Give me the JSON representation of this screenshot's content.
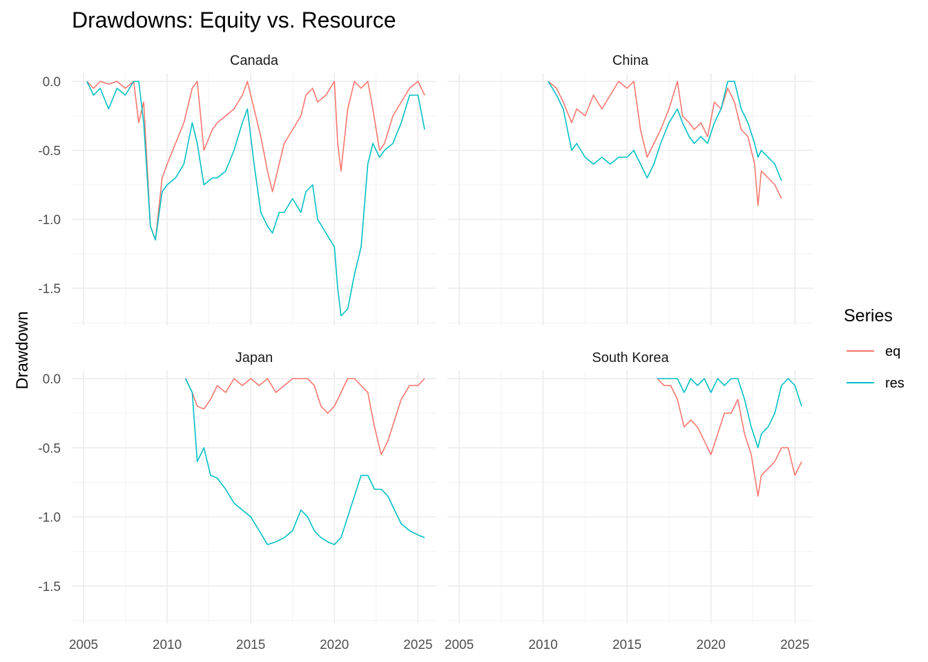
{
  "chart_data": {
    "type": "line",
    "title": "Drawdowns: Equity vs. Resource",
    "xlabel": "",
    "ylabel": "Drawdown",
    "xlim": [
      2004.3,
      2026.1
    ],
    "ylim": [
      -1.77,
      0.06
    ],
    "x_ticks": [
      "2005",
      "2010",
      "2015",
      "2020",
      "2025"
    ],
    "y_ticks": [
      "0.0",
      "-0.5",
      "-1.0",
      "-1.5"
    ],
    "grid": true,
    "legend": {
      "title": "Series",
      "position": "right",
      "entries": [
        {
          "name": "eq",
          "color": "#F8766D"
        },
        {
          "name": "res",
          "color": "#00BFC4"
        }
      ]
    },
    "panels": [
      {
        "name": "Canada",
        "series": [
          {
            "name": "eq",
            "color": "#F8766D",
            "x": [
              2005.2,
              2005.6,
              2006.0,
              2006.5,
              2007.0,
              2007.5,
              2008.0,
              2008.3,
              2008.6,
              2009.0,
              2009.3,
              2009.7,
              2010.0,
              2010.5,
              2011.0,
              2011.5,
              2011.8,
              2012.2,
              2012.7,
              2013.0,
              2013.5,
              2014.0,
              2014.5,
              2014.8,
              2015.2,
              2015.6,
              2016.0,
              2016.3,
              2016.7,
              2017.0,
              2017.5,
              2018.0,
              2018.3,
              2018.7,
              2019.0,
              2019.5,
              2020.0,
              2020.2,
              2020.4,
              2020.8,
              2021.2,
              2021.6,
              2022.0,
              2022.3,
              2022.7,
              2023.0,
              2023.5,
              2024.0,
              2024.5,
              2025.0,
              2025.4
            ],
            "y": [
              0.0,
              -0.05,
              0.0,
              -0.02,
              0.0,
              -0.05,
              0.0,
              -0.3,
              -0.15,
              -1.05,
              -1.15,
              -0.7,
              -0.6,
              -0.45,
              -0.3,
              -0.05,
              0.0,
              -0.5,
              -0.35,
              -0.3,
              -0.25,
              -0.2,
              -0.1,
              0.0,
              -0.2,
              -0.4,
              -0.65,
              -0.8,
              -0.6,
              -0.45,
              -0.35,
              -0.25,
              -0.1,
              -0.05,
              -0.15,
              -0.1,
              0.0,
              -0.45,
              -0.65,
              -0.2,
              0.0,
              -0.05,
              0.0,
              -0.2,
              -0.5,
              -0.45,
              -0.25,
              -0.15,
              -0.05,
              0.0,
              -0.1
            ]
          },
          {
            "name": "res",
            "color": "#00BFC4",
            "x": [
              2005.2,
              2005.6,
              2006.0,
              2006.5,
              2007.0,
              2007.5,
              2008.0,
              2008.3,
              2008.6,
              2009.0,
              2009.3,
              2009.7,
              2010.0,
              2010.5,
              2011.0,
              2011.5,
              2011.8,
              2012.2,
              2012.7,
              2013.0,
              2013.5,
              2014.0,
              2014.5,
              2014.8,
              2015.2,
              2015.6,
              2016.0,
              2016.3,
              2016.7,
              2017.0,
              2017.5,
              2018.0,
              2018.3,
              2018.7,
              2019.0,
              2019.5,
              2020.0,
              2020.2,
              2020.4,
              2020.8,
              2021.2,
              2021.6,
              2022.0,
              2022.3,
              2022.7,
              2023.0,
              2023.5,
              2024.0,
              2024.5,
              2025.0,
              2025.4
            ],
            "y": [
              0.0,
              -0.1,
              -0.05,
              -0.2,
              -0.05,
              -0.1,
              0.0,
              0.0,
              -0.3,
              -1.05,
              -1.15,
              -0.8,
              -0.75,
              -0.7,
              -0.6,
              -0.3,
              -0.45,
              -0.75,
              -0.7,
              -0.7,
              -0.65,
              -0.5,
              -0.3,
              -0.2,
              -0.6,
              -0.95,
              -1.05,
              -1.1,
              -0.95,
              -0.95,
              -0.85,
              -0.95,
              -0.8,
              -0.75,
              -1.0,
              -1.1,
              -1.2,
              -1.5,
              -1.7,
              -1.65,
              -1.4,
              -1.2,
              -0.6,
              -0.45,
              -0.55,
              -0.5,
              -0.45,
              -0.3,
              -0.1,
              -0.1,
              -0.35
            ]
          }
        ]
      },
      {
        "name": "China",
        "series": [
          {
            "name": "eq",
            "color": "#F8766D",
            "x": [
              2010.3,
              2010.8,
              2011.2,
              2011.7,
              2012.0,
              2012.5,
              2013.0,
              2013.5,
              2014.0,
              2014.5,
              2015.0,
              2015.4,
              2015.8,
              2016.2,
              2016.6,
              2017.0,
              2017.5,
              2018.0,
              2018.3,
              2018.7,
              2019.0,
              2019.4,
              2019.8,
              2020.2,
              2020.6,
              2021.0,
              2021.4,
              2021.8,
              2022.2,
              2022.6,
              2022.8,
              2023.0,
              2023.4,
              2023.8,
              2024.2
            ],
            "y": [
              0.0,
              -0.05,
              -0.15,
              -0.3,
              -0.2,
              -0.25,
              -0.1,
              -0.2,
              -0.1,
              0.0,
              -0.05,
              0.0,
              -0.35,
              -0.55,
              -0.45,
              -0.35,
              -0.2,
              0.0,
              -0.25,
              -0.3,
              -0.35,
              -0.3,
              -0.4,
              -0.15,
              -0.2,
              -0.05,
              -0.15,
              -0.35,
              -0.4,
              -0.6,
              -0.9,
              -0.65,
              -0.7,
              -0.75,
              -0.85
            ]
          },
          {
            "name": "res",
            "color": "#00BFC4",
            "x": [
              2010.3,
              2010.8,
              2011.2,
              2011.7,
              2012.0,
              2012.5,
              2013.0,
              2013.5,
              2014.0,
              2014.5,
              2015.0,
              2015.4,
              2015.8,
              2016.2,
              2016.6,
              2017.0,
              2017.5,
              2018.0,
              2018.3,
              2018.7,
              2019.0,
              2019.4,
              2019.8,
              2020.2,
              2020.6,
              2021.0,
              2021.4,
              2021.8,
              2022.2,
              2022.6,
              2022.8,
              2023.0,
              2023.4,
              2023.8,
              2024.2
            ],
            "y": [
              0.0,
              -0.1,
              -0.2,
              -0.5,
              -0.45,
              -0.55,
              -0.6,
              -0.55,
              -0.6,
              -0.55,
              -0.55,
              -0.5,
              -0.6,
              -0.7,
              -0.6,
              -0.45,
              -0.3,
              -0.2,
              -0.3,
              -0.4,
              -0.45,
              -0.4,
              -0.45,
              -0.3,
              -0.2,
              0.0,
              0.0,
              -0.2,
              -0.3,
              -0.45,
              -0.55,
              -0.5,
              -0.55,
              -0.6,
              -0.72
            ]
          }
        ]
      },
      {
        "name": "Japan",
        "series": [
          {
            "name": "eq",
            "color": "#F8766D",
            "x": [
              2011.1,
              2011.5,
              2011.8,
              2012.2,
              2012.6,
              2013.0,
              2013.5,
              2014.0,
              2014.5,
              2015.0,
              2015.5,
              2016.0,
              2016.5,
              2017.0,
              2017.5,
              2018.0,
              2018.4,
              2018.8,
              2019.2,
              2019.6,
              2020.0,
              2020.4,
              2020.8,
              2021.2,
              2021.6,
              2022.0,
              2022.4,
              2022.8,
              2023.2,
              2023.6,
              2024.0,
              2024.5,
              2025.0,
              2025.4
            ],
            "y": [
              0.0,
              -0.1,
              -0.2,
              -0.22,
              -0.15,
              -0.05,
              -0.1,
              0.0,
              -0.05,
              0.0,
              -0.05,
              0.0,
              -0.1,
              -0.05,
              0.0,
              0.0,
              0.0,
              -0.05,
              -0.2,
              -0.25,
              -0.2,
              -0.1,
              0.0,
              0.0,
              -0.05,
              -0.1,
              -0.35,
              -0.55,
              -0.45,
              -0.3,
              -0.15,
              -0.05,
              -0.05,
              0.0
            ]
          },
          {
            "name": "res",
            "color": "#00BFC4",
            "x": [
              2011.1,
              2011.5,
              2011.8,
              2012.2,
              2012.6,
              2013.0,
              2013.5,
              2014.0,
              2014.5,
              2015.0,
              2015.5,
              2016.0,
              2016.5,
              2017.0,
              2017.5,
              2018.0,
              2018.4,
              2018.8,
              2019.2,
              2019.6,
              2020.0,
              2020.4,
              2020.8,
              2021.2,
              2021.6,
              2022.0,
              2022.4,
              2022.8,
              2023.2,
              2023.6,
              2024.0,
              2024.5,
              2025.0,
              2025.4
            ],
            "y": [
              0.0,
              -0.1,
              -0.6,
              -0.5,
              -0.7,
              -0.72,
              -0.8,
              -0.9,
              -0.95,
              -1.0,
              -1.1,
              -1.2,
              -1.18,
              -1.15,
              -1.1,
              -0.95,
              -1.0,
              -1.1,
              -1.15,
              -1.18,
              -1.2,
              -1.15,
              -1.0,
              -0.85,
              -0.7,
              -0.7,
              -0.8,
              -0.8,
              -0.85,
              -0.95,
              -1.05,
              -1.1,
              -1.13,
              -1.15
            ]
          }
        ]
      },
      {
        "name": "South Korea",
        "series": [
          {
            "name": "eq",
            "color": "#F8766D",
            "x": [
              2016.8,
              2017.2,
              2017.6,
              2018.0,
              2018.4,
              2018.8,
              2019.2,
              2019.6,
              2020.0,
              2020.4,
              2020.8,
              2021.2,
              2021.6,
              2022.0,
              2022.4,
              2022.8,
              2023.0,
              2023.4,
              2023.8,
              2024.2,
              2024.6,
              2025.0,
              2025.4
            ],
            "y": [
              0.0,
              -0.05,
              -0.05,
              -0.15,
              -0.35,
              -0.3,
              -0.35,
              -0.45,
              -0.55,
              -0.4,
              -0.25,
              -0.25,
              -0.15,
              -0.4,
              -0.55,
              -0.85,
              -0.7,
              -0.65,
              -0.6,
              -0.5,
              -0.5,
              -0.7,
              -0.6
            ]
          },
          {
            "name": "res",
            "color": "#00BFC4",
            "x": [
              2016.8,
              2017.2,
              2017.6,
              2018.0,
              2018.4,
              2018.8,
              2019.2,
              2019.6,
              2020.0,
              2020.4,
              2020.8,
              2021.2,
              2021.6,
              2022.0,
              2022.4,
              2022.8,
              2023.0,
              2023.4,
              2023.8,
              2024.2,
              2024.6,
              2025.0,
              2025.4
            ],
            "y": [
              0.0,
              0.0,
              0.0,
              0.0,
              -0.1,
              0.0,
              -0.05,
              0.0,
              -0.1,
              0.0,
              -0.05,
              0.0,
              0.0,
              -0.15,
              -0.35,
              -0.5,
              -0.4,
              -0.35,
              -0.25,
              -0.05,
              0.0,
              -0.05,
              -0.2
            ]
          }
        ]
      }
    ]
  }
}
